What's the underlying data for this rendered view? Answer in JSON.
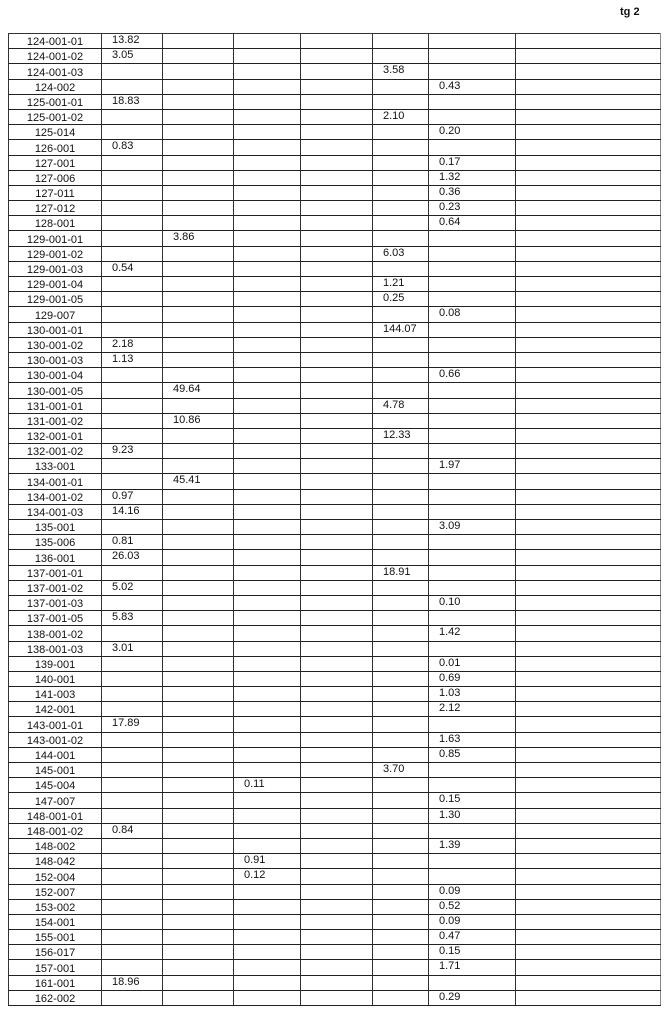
{
  "page_label": "tg 2",
  "table": {
    "rows": [
      [
        "124-001-01",
        "13.82",
        "",
        "",
        "",
        "",
        "",
        ""
      ],
      [
        "124-001-02",
        "3.05",
        "",
        "",
        "",
        "",
        "",
        ""
      ],
      [
        "124-001-03",
        "",
        "",
        "",
        "",
        "3.58",
        "",
        ""
      ],
      [
        "124-002",
        "",
        "",
        "",
        "",
        "",
        "0.43",
        ""
      ],
      [
        "125-001-01",
        "18.83",
        "",
        "",
        "",
        "",
        "",
        ""
      ],
      [
        "125-001-02",
        "",
        "",
        "",
        "",
        "2.10",
        "",
        ""
      ],
      [
        "125-014",
        "",
        "",
        "",
        "",
        "",
        "0.20",
        ""
      ],
      [
        "126-001",
        "0.83",
        "",
        "",
        "",
        "",
        "",
        ""
      ],
      [
        "127-001",
        "",
        "",
        "",
        "",
        "",
        "0.17",
        ""
      ],
      [
        "127-006",
        "",
        "",
        "",
        "",
        "",
        "1.32",
        ""
      ],
      [
        "127-011",
        "",
        "",
        "",
        "",
        "",
        "0.36",
        ""
      ],
      [
        "127-012",
        "",
        "",
        "",
        "",
        "",
        "0.23",
        ""
      ],
      [
        "128-001",
        "",
        "",
        "",
        "",
        "",
        "0.64",
        ""
      ],
      [
        "129-001-01",
        "",
        "3.86",
        "",
        "",
        "",
        "",
        ""
      ],
      [
        "129-001-02",
        "",
        "",
        "",
        "",
        "6.03",
        "",
        ""
      ],
      [
        "129-001-03",
        "0.54",
        "",
        "",
        "",
        "",
        "",
        ""
      ],
      [
        "129-001-04",
        "",
        "",
        "",
        "",
        "1.21",
        "",
        ""
      ],
      [
        "129-001-05",
        "",
        "",
        "",
        "",
        "0.25",
        "",
        ""
      ],
      [
        "129-007",
        "",
        "",
        "",
        "",
        "",
        "0.08",
        ""
      ],
      [
        "130-001-01",
        "",
        "",
        "",
        "",
        "144.07",
        "",
        ""
      ],
      [
        "130-001-02",
        "2.18",
        "",
        "",
        "",
        "",
        "",
        ""
      ],
      [
        "130-001-03",
        "1.13",
        "",
        "",
        "",
        "",
        "",
        ""
      ],
      [
        "130-001-04",
        "",
        "",
        "",
        "",
        "",
        "0.66",
        ""
      ],
      [
        "130-001-05",
        "",
        "49.64",
        "",
        "",
        "",
        "",
        ""
      ],
      [
        "131-001-01",
        "",
        "",
        "",
        "",
        "4.78",
        "",
        ""
      ],
      [
        "131-001-02",
        "",
        "10.86",
        "",
        "",
        "",
        "",
        ""
      ],
      [
        "132-001-01",
        "",
        "",
        "",
        "",
        "12.33",
        "",
        ""
      ],
      [
        "132-001-02",
        "9.23",
        "",
        "",
        "",
        "",
        "",
        ""
      ],
      [
        "133-001",
        "",
        "",
        "",
        "",
        "",
        "1.97",
        ""
      ],
      [
        "134-001-01",
        "",
        "45.41",
        "",
        "",
        "",
        "",
        ""
      ],
      [
        "134-001-02",
        "0.97",
        "",
        "",
        "",
        "",
        "",
        ""
      ],
      [
        "134-001-03",
        "14.16",
        "",
        "",
        "",
        "",
        "",
        ""
      ],
      [
        "135-001",
        "",
        "",
        "",
        "",
        "",
        "3.09",
        ""
      ],
      [
        "135-006",
        "0.81",
        "",
        "",
        "",
        "",
        "",
        ""
      ],
      [
        "136-001",
        "26.03",
        "",
        "",
        "",
        "",
        "",
        ""
      ],
      [
        "137-001-01",
        "",
        "",
        "",
        "",
        "18.91",
        "",
        ""
      ],
      [
        "137-001-02",
        "5.02",
        "",
        "",
        "",
        "",
        "",
        ""
      ],
      [
        "137-001-03",
        "",
        "",
        "",
        "",
        "",
        "0.10",
        ""
      ],
      [
        "137-001-05",
        "5.83",
        "",
        "",
        "",
        "",
        "",
        ""
      ],
      [
        "138-001-02",
        "",
        "",
        "",
        "",
        "",
        "1.42",
        ""
      ],
      [
        "138-001-03",
        "3.01",
        "",
        "",
        "",
        "",
        "",
        ""
      ],
      [
        "139-001",
        "",
        "",
        "",
        "",
        "",
        "0.01",
        ""
      ],
      [
        "140-001",
        "",
        "",
        "",
        "",
        "",
        "0.69",
        ""
      ],
      [
        "141-003",
        "",
        "",
        "",
        "",
        "",
        "1.03",
        ""
      ],
      [
        "142-001",
        "",
        "",
        "",
        "",
        "",
        "2.12",
        ""
      ],
      [
        "143-001-01",
        "17.89",
        "",
        "",
        "",
        "",
        "",
        ""
      ],
      [
        "143-001-02",
        "",
        "",
        "",
        "",
        "",
        "1.63",
        ""
      ],
      [
        "144-001",
        "",
        "",
        "",
        "",
        "",
        "0.85",
        ""
      ],
      [
        "145-001",
        "",
        "",
        "",
        "",
        "3.70",
        "",
        ""
      ],
      [
        "145-004",
        "",
        "",
        "0.11",
        "",
        "",
        "",
        ""
      ],
      [
        "147-007",
        "",
        "",
        "",
        "",
        "",
        "0.15",
        ""
      ],
      [
        "148-001-01",
        "",
        "",
        "",
        "",
        "",
        "1.30",
        ""
      ],
      [
        "148-001-02",
        "0.84",
        "",
        "",
        "",
        "",
        "",
        ""
      ],
      [
        "148-002",
        "",
        "",
        "",
        "",
        "",
        "1.39",
        ""
      ],
      [
        "148-042",
        "",
        "",
        "0.91",
        "",
        "",
        "",
        ""
      ],
      [
        "152-004",
        "",
        "",
        "0.12",
        "",
        "",
        "",
        ""
      ],
      [
        "152-007",
        "",
        "",
        "",
        "",
        "",
        "0.09",
        ""
      ],
      [
        "153-002",
        "",
        "",
        "",
        "",
        "",
        "0.52",
        ""
      ],
      [
        "154-001",
        "",
        "",
        "",
        "",
        "",
        "0.09",
        ""
      ],
      [
        "155-001",
        "",
        "",
        "",
        "",
        "",
        "0.47",
        ""
      ],
      [
        "156-017",
        "",
        "",
        "",
        "",
        "",
        "0.15",
        ""
      ],
      [
        "157-001",
        "",
        "",
        "",
        "",
        "",
        "1.71",
        ""
      ],
      [
        "161-001",
        "18.96",
        "",
        "",
        "",
        "",
        "",
        ""
      ],
      [
        "162-002",
        "",
        "",
        "",
        "",
        "",
        "0.29",
        ""
      ]
    ]
  }
}
